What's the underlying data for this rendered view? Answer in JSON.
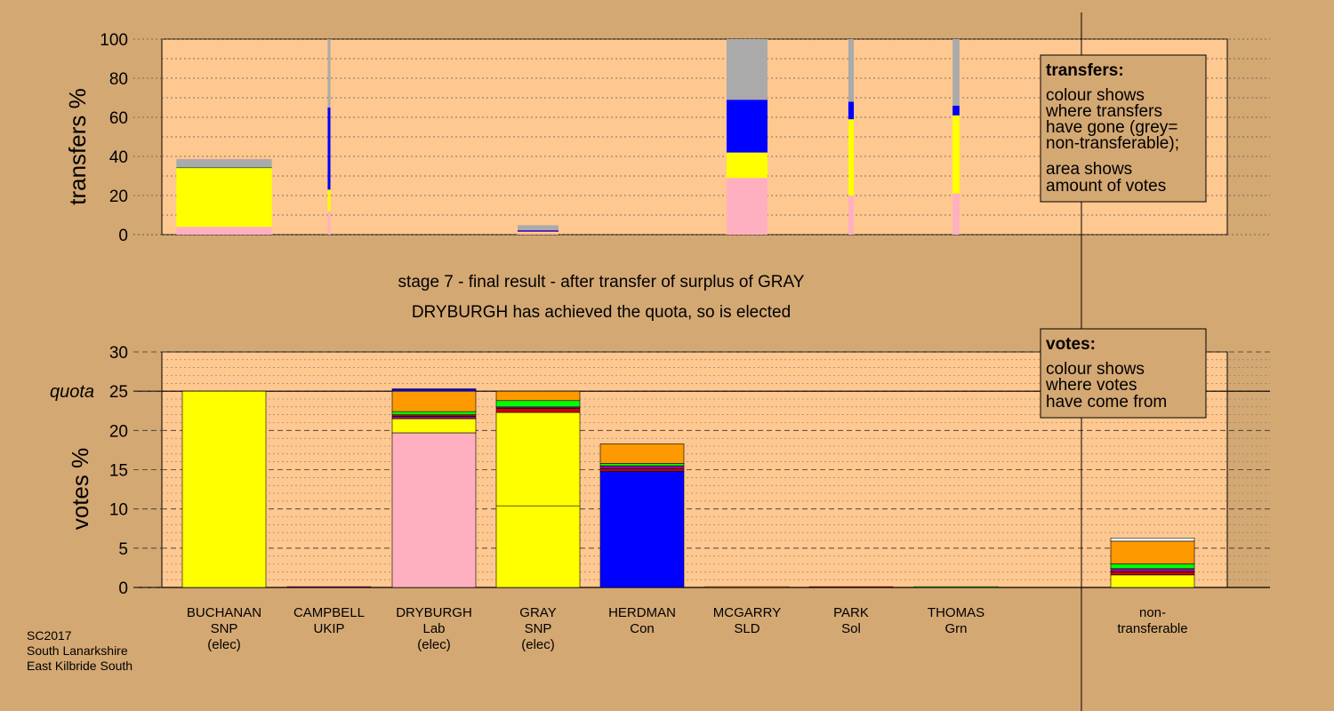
{
  "colors": {
    "background": "#d4a873",
    "plot_bg": "#ffc890",
    "SNP": "#ffff00",
    "Lab": "#ffb0c0",
    "Con": "#0000ff",
    "Grn": "#00ff00",
    "UKIP": "#990099",
    "Sol": "#cc0000",
    "SLD": "#ff9900",
    "nontransferable": "#aaaaaa"
  },
  "stage_text": {
    "line1": "stage 7 - final result - after transfer of surplus of GRAY",
    "line2": "DRYBURGH has achieved the quota, so is elected"
  },
  "transfers_box": {
    "title": "transfers:",
    "lines": [
      "colour shows",
      "where transfers",
      "have gone (grey=",
      "non-transferable);",
      "area shows",
      "amount of votes"
    ]
  },
  "votes_box": {
    "title": "votes:",
    "lines": [
      "colour shows",
      "where votes",
      "have come from"
    ]
  },
  "quota_label": "quota",
  "footer": [
    "SC2017",
    "South Lanarkshire",
    "East Kilbride South"
  ],
  "chart_data": [
    {
      "type": "bar",
      "stacked": true,
      "ylabel": "transfers %",
      "ylim": [
        0,
        100
      ],
      "yticks": [
        "0",
        "20",
        "40",
        "60",
        "80",
        "100"
      ],
      "grid": true,
      "bars": [
        {
          "name": "BUCHANAN",
          "width": 0.7,
          "segments": [
            {
              "party": "Lab",
              "value": 4
            },
            {
              "party": "SNP",
              "value": 30
            },
            {
              "party": "Grn",
              "value": 0.3
            },
            {
              "party": "UKIP",
              "value": 0.3
            },
            {
              "party": "nontransferable",
              "value": 4
            }
          ]
        },
        {
          "name": "CAMPBELL",
          "width": 0.02,
          "segments": [
            {
              "party": "Lab",
              "value": 12
            },
            {
              "party": "SNP",
              "value": 11
            },
            {
              "party": "Con",
              "value": 42
            },
            {
              "party": "nontransferable",
              "value": 35
            }
          ]
        },
        {
          "name": "DRYBURGH",
          "width": 0,
          "segments": []
        },
        {
          "name": "GRAY",
          "width": 0.3,
          "segments": [
            {
              "party": "Lab",
              "value": 1
            },
            {
              "party": "SNP",
              "value": 0.5
            },
            {
              "party": "Con",
              "value": 0.5
            },
            {
              "party": "UKIP",
              "value": 0.3
            },
            {
              "party": "nontransferable",
              "value": 2.5
            }
          ]
        },
        {
          "name": "HERDMAN",
          "width": 0,
          "segments": []
        },
        {
          "name": "MCGARRY",
          "width": 0.3,
          "segments": [
            {
              "party": "Lab",
              "value": 29
            },
            {
              "party": "SNP",
              "value": 13
            },
            {
              "party": "Con",
              "value": 27
            },
            {
              "party": "nontransferable",
              "value": 31
            }
          ]
        },
        {
          "name": "PARK",
          "width": 0.04,
          "segments": [
            {
              "party": "Lab",
              "value": 20
            },
            {
              "party": "SNP",
              "value": 39
            },
            {
              "party": "Con",
              "value": 9
            },
            {
              "party": "nontransferable",
              "value": 32
            }
          ]
        },
        {
          "name": "THOMAS",
          "width": 0.05,
          "segments": [
            {
              "party": "Lab",
              "value": 21
            },
            {
              "party": "SNP",
              "value": 40
            },
            {
              "party": "Con",
              "value": 5
            },
            {
              "party": "nontransferable",
              "value": 34
            }
          ]
        },
        {
          "name": "non-transferable",
          "width": 0,
          "segments": []
        }
      ]
    },
    {
      "type": "bar",
      "stacked": true,
      "ylabel": "votes %",
      "ylim": [
        0,
        30
      ],
      "yticks": [
        "0",
        "5",
        "10",
        "15",
        "20",
        "25",
        "30"
      ],
      "quota": 25,
      "grid": true,
      "candidates": [
        {
          "name": "BUCHANAN",
          "party": "SNP",
          "status": "(elec)"
        },
        {
          "name": "CAMPBELL",
          "party": "UKIP",
          "status": ""
        },
        {
          "name": "DRYBURGH",
          "party": "Lab",
          "status": "(elec)"
        },
        {
          "name": "GRAY",
          "party": "SNP",
          "status": "(elec)"
        },
        {
          "name": "HERDMAN",
          "party": "Con",
          "status": ""
        },
        {
          "name": "MCGARRY",
          "party": "SLD",
          "status": ""
        },
        {
          "name": "PARK",
          "party": "Sol",
          "status": ""
        },
        {
          "name": "THOMAS",
          "party": "Grn",
          "status": ""
        },
        {
          "name": "non-",
          "party": "transferable",
          "status": ""
        }
      ],
      "bars": [
        {
          "name": "BUCHANAN",
          "segments": [
            {
              "party": "SNP",
              "value": 25
            }
          ]
        },
        {
          "name": "CAMPBELL",
          "segments": [
            {
              "party": "UKIP",
              "value": 0.1
            }
          ]
        },
        {
          "name": "DRYBURGH",
          "segments": [
            {
              "party": "Lab",
              "value": 19.7
            },
            {
              "party": "SNP",
              "value": 1.8
            },
            {
              "party": "UKIP",
              "value": 0.3
            },
            {
              "party": "Sol",
              "value": 0.2
            },
            {
              "party": "Grn",
              "value": 0.4
            },
            {
              "party": "SLD",
              "value": 2.6
            },
            {
              "party": "Con",
              "value": 0.3
            }
          ]
        },
        {
          "name": "GRAY",
          "segments": [
            {
              "party": "SNP",
              "value": 10.4
            },
            {
              "party": "SNP",
              "value": 11.9
            },
            {
              "party": "Sol",
              "value": 0.5
            },
            {
              "party": "UKIP",
              "value": 0.2
            },
            {
              "party": "Grn",
              "value": 0.8
            },
            {
              "party": "SLD",
              "value": 1.2
            }
          ]
        },
        {
          "name": "HERDMAN",
          "segments": [
            {
              "party": "Con",
              "value": 14.8
            },
            {
              "party": "Sol",
              "value": 0.3
            },
            {
              "party": "UKIP",
              "value": 0.4
            },
            {
              "party": "Grn",
              "value": 0.3
            },
            {
              "party": "SLD",
              "value": 2.5
            }
          ]
        },
        {
          "name": "MCGARRY",
          "segments": [
            {
              "party": "SLD",
              "value": 0.1
            }
          ]
        },
        {
          "name": "PARK",
          "segments": [
            {
              "party": "Sol",
              "value": 0.1
            }
          ]
        },
        {
          "name": "THOMAS",
          "segments": [
            {
              "party": "Grn",
              "value": 0.1
            }
          ]
        },
        {
          "name": "non-transferable",
          "segments": [
            {
              "party": "SNP",
              "value": 1.6
            },
            {
              "party": "Sol",
              "value": 0.4
            },
            {
              "party": "UKIP",
              "value": 0.4
            },
            {
              "party": "Grn",
              "value": 0.6
            },
            {
              "party": "SLD",
              "value": 2.9
            },
            {
              "party": "nontransferable_white",
              "value": 0.4
            }
          ]
        }
      ]
    }
  ]
}
